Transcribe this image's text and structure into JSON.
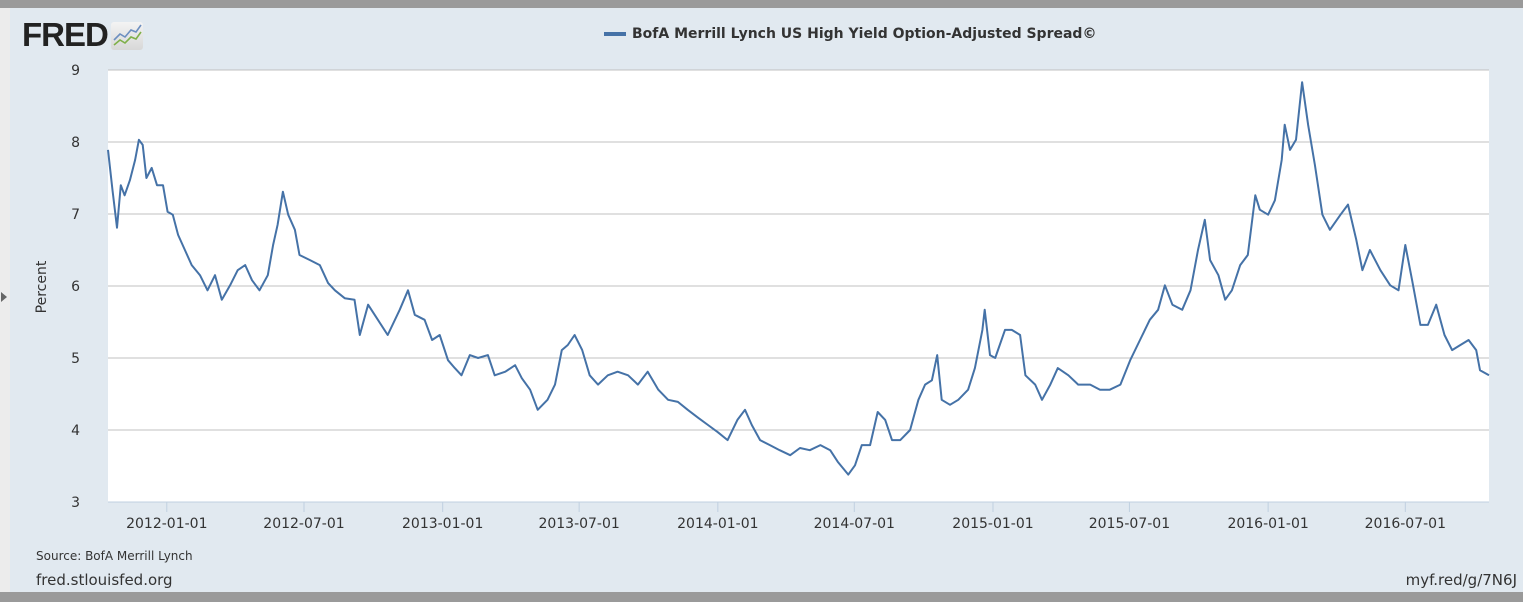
{
  "header": {
    "logo_text": "FRED",
    "logo_icon": "line-chart-icon"
  },
  "footer": {
    "source": "Source: BofA Merrill Lynch",
    "site": "fred.stlouisfed.org",
    "short_link": "myf.red/g/7N6J"
  },
  "colors": {
    "background": "#e1e9f0",
    "plot_background": "#ffffff",
    "series": "#4572a7",
    "grid": "#c0c0c0"
  },
  "chart_data": {
    "type": "line",
    "title": "",
    "xlabel": "",
    "ylabel": "Percent",
    "ylim": [
      3,
      9
    ],
    "xlim": [
      "2011-10-15",
      "2016-10-20"
    ],
    "grid": true,
    "legend_placement": "top-center",
    "yticks": [
      "3",
      "4",
      "5",
      "6",
      "7",
      "8",
      "9"
    ],
    "xticks": [
      "2012-01-01",
      "2012-07-01",
      "2013-01-01",
      "2013-07-01",
      "2014-01-01",
      "2014-07-01",
      "2015-01-01",
      "2015-07-01",
      "2016-01-01",
      "2016-07-01"
    ],
    "series": [
      {
        "name": "BofA Merrill Lynch US High Yield Option-Adjusted Spread©",
        "x": [
          "2011-10-15",
          "2011-10-21",
          "2011-10-27",
          "2011-11-01",
          "2011-11-06",
          "2011-11-13",
          "2011-11-20",
          "2011-11-25",
          "2011-11-30",
          "2011-12-05",
          "2011-12-12",
          "2011-12-19",
          "2011-12-27",
          "2012-01-02",
          "2012-01-09",
          "2012-01-16",
          "2012-01-25",
          "2012-02-03",
          "2012-02-14",
          "2012-02-24",
          "2012-03-05",
          "2012-03-14",
          "2012-03-25",
          "2012-04-04",
          "2012-04-14",
          "2012-04-23",
          "2012-05-03",
          "2012-05-14",
          "2012-05-21",
          "2012-05-27",
          "2012-06-03",
          "2012-06-10",
          "2012-06-19",
          "2012-06-25",
          "2012-07-09",
          "2012-07-22",
          "2012-08-02",
          "2012-08-11",
          "2012-08-24",
          "2012-09-06",
          "2012-09-13",
          "2012-09-24",
          "2012-10-07",
          "2012-10-20",
          "2012-11-05",
          "2012-11-16",
          "2012-11-25",
          "2012-12-08",
          "2012-12-18",
          "2012-12-28",
          "2013-01-08",
          "2013-01-17",
          "2013-01-26",
          "2013-02-06",
          "2013-02-17",
          "2013-03-02",
          "2013-03-11",
          "2013-03-25",
          "2013-04-07",
          "2013-04-16",
          "2013-04-27",
          "2013-05-07",
          "2013-05-20",
          "2013-05-30",
          "2013-06-08",
          "2013-06-16",
          "2013-06-25",
          "2013-07-05",
          "2013-07-15",
          "2013-07-26",
          "2013-08-08",
          "2013-08-21",
          "2013-09-04",
          "2013-09-17",
          "2013-09-30",
          "2013-10-14",
          "2013-10-27",
          "2013-11-09",
          "2013-11-22",
          "2013-12-06",
          "2013-12-19",
          "2014-01-01",
          "2014-01-14",
          "2014-01-27",
          "2014-02-06",
          "2014-02-15",
          "2014-02-26",
          "2014-03-11",
          "2014-03-24",
          "2014-04-07",
          "2014-04-20",
          "2014-05-03",
          "2014-05-17",
          "2014-05-30",
          "2014-06-09",
          "2014-06-23",
          "2014-07-02",
          "2014-07-11",
          "2014-07-22",
          "2014-08-01",
          "2014-08-11",
          "2014-08-20",
          "2014-08-31",
          "2014-09-13",
          "2014-09-24",
          "2014-10-03",
          "2014-10-12",
          "2014-10-19",
          "2014-10-25",
          "2014-11-05",
          "2014-11-16",
          "2014-11-29",
          "2014-12-08",
          "2014-12-18",
          "2014-12-21",
          "2014-12-28",
          "2015-01-04",
          "2015-01-17",
          "2015-01-26",
          "2015-02-06",
          "2015-02-13",
          "2015-02-26",
          "2015-03-07",
          "2015-03-18",
          "2015-03-28",
          "2015-04-11",
          "2015-04-24",
          "2015-05-10",
          "2015-05-23",
          "2015-06-05",
          "2015-06-19",
          "2015-07-02",
          "2015-07-15",
          "2015-07-28",
          "2015-08-08",
          "2015-08-17",
          "2015-08-27",
          "2015-09-09",
          "2015-09-20",
          "2015-09-30",
          "2015-10-09",
          "2015-10-16",
          "2015-10-27",
          "2015-11-05",
          "2015-11-14",
          "2015-11-25",
          "2015-12-05",
          "2015-12-15",
          "2015-12-21",
          "2016-01-01",
          "2016-01-10",
          "2016-01-19",
          "2016-01-23",
          "2016-01-30",
          "2016-02-07",
          "2016-02-15",
          "2016-02-23",
          "2016-03-03",
          "2016-03-13",
          "2016-03-23",
          "2016-04-06",
          "2016-04-16",
          "2016-04-27",
          "2016-05-05",
          "2016-05-15",
          "2016-05-29",
          "2016-06-11",
          "2016-06-22",
          "2016-07-01",
          "2016-07-10",
          "2016-07-21",
          "2016-07-31",
          "2016-08-11",
          "2016-08-22",
          "2016-09-01",
          "2016-09-12",
          "2016-09-23",
          "2016-10-03",
          "2016-10-08",
          "2016-10-20"
        ],
        "values": [
          7.89,
          7.33,
          6.81,
          7.4,
          7.26,
          7.47,
          7.75,
          8.03,
          7.96,
          7.5,
          7.64,
          7.4,
          7.4,
          7.03,
          6.99,
          6.71,
          6.5,
          6.29,
          6.15,
          5.94,
          6.15,
          5.81,
          6.01,
          6.22,
          6.29,
          6.08,
          5.94,
          6.15,
          6.57,
          6.85,
          7.31,
          6.99,
          6.78,
          6.43,
          6.36,
          6.29,
          6.04,
          5.94,
          5.83,
          5.81,
          5.32,
          5.74,
          5.53,
          5.32,
          5.67,
          5.94,
          5.6,
          5.53,
          5.25,
          5.32,
          4.97,
          4.86,
          4.76,
          5.04,
          5.0,
          5.04,
          4.76,
          4.81,
          4.9,
          4.72,
          4.56,
          4.28,
          4.42,
          4.63,
          5.11,
          5.18,
          5.32,
          5.11,
          4.76,
          4.63,
          4.76,
          4.81,
          4.76,
          4.63,
          4.81,
          4.56,
          4.42,
          4.39,
          4.28,
          4.17,
          4.07,
          3.97,
          3.86,
          4.14,
          4.28,
          4.07,
          3.86,
          3.79,
          3.72,
          3.65,
          3.75,
          3.72,
          3.79,
          3.72,
          3.56,
          3.38,
          3.51,
          3.79,
          3.79,
          4.25,
          4.14,
          3.86,
          3.86,
          4.0,
          4.42,
          4.63,
          4.69,
          5.04,
          4.42,
          4.35,
          4.42,
          4.56,
          4.86,
          5.39,
          5.67,
          5.04,
          5.0,
          5.39,
          5.39,
          5.32,
          4.76,
          4.63,
          4.42,
          4.63,
          4.86,
          4.76,
          4.63,
          4.63,
          4.56,
          4.56,
          4.63,
          4.97,
          5.25,
          5.53,
          5.67,
          6.01,
          5.74,
          5.67,
          5.94,
          6.5,
          6.92,
          6.36,
          6.15,
          5.81,
          5.94,
          6.29,
          6.43,
          7.26,
          7.06,
          6.99,
          7.19,
          7.75,
          8.24,
          7.89,
          8.03,
          8.83,
          8.24,
          7.68,
          6.99,
          6.78,
          6.99,
          7.13,
          6.64,
          6.22,
          6.5,
          6.22,
          6.01,
          5.94,
          6.57,
          6.08,
          5.46,
          5.46,
          5.74,
          5.32,
          5.11,
          5.18,
          5.25,
          5.11,
          4.83,
          4.76
        ]
      }
    ]
  }
}
